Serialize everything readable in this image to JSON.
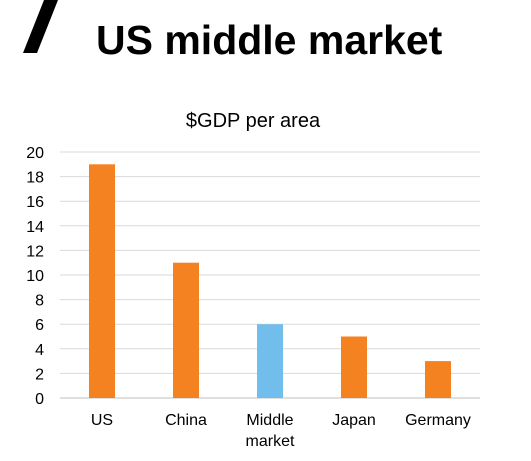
{
  "header": {
    "title": "US middle market"
  },
  "colors": {
    "default_bar": "#F58220",
    "highlight_bar": "#71BDEB",
    "gridline": "#D9D9D9",
    "axis": "#BFBFBF",
    "text": "#000000"
  },
  "chart_data": {
    "type": "bar",
    "title": "$GDP per area",
    "xlabel": "",
    "ylabel": "",
    "categories": [
      "US",
      "China",
      "Middle\nmarket",
      "Japan",
      "Germany"
    ],
    "values": [
      19,
      11,
      6,
      5,
      3
    ],
    "bar_colors": [
      "#F58220",
      "#F58220",
      "#71BDEB",
      "#F58220",
      "#F58220"
    ],
    "ylim": [
      0,
      20
    ],
    "yticks": [
      0,
      2,
      4,
      6,
      8,
      10,
      12,
      14,
      16,
      18,
      20
    ],
    "grid": true,
    "legend": "none"
  }
}
